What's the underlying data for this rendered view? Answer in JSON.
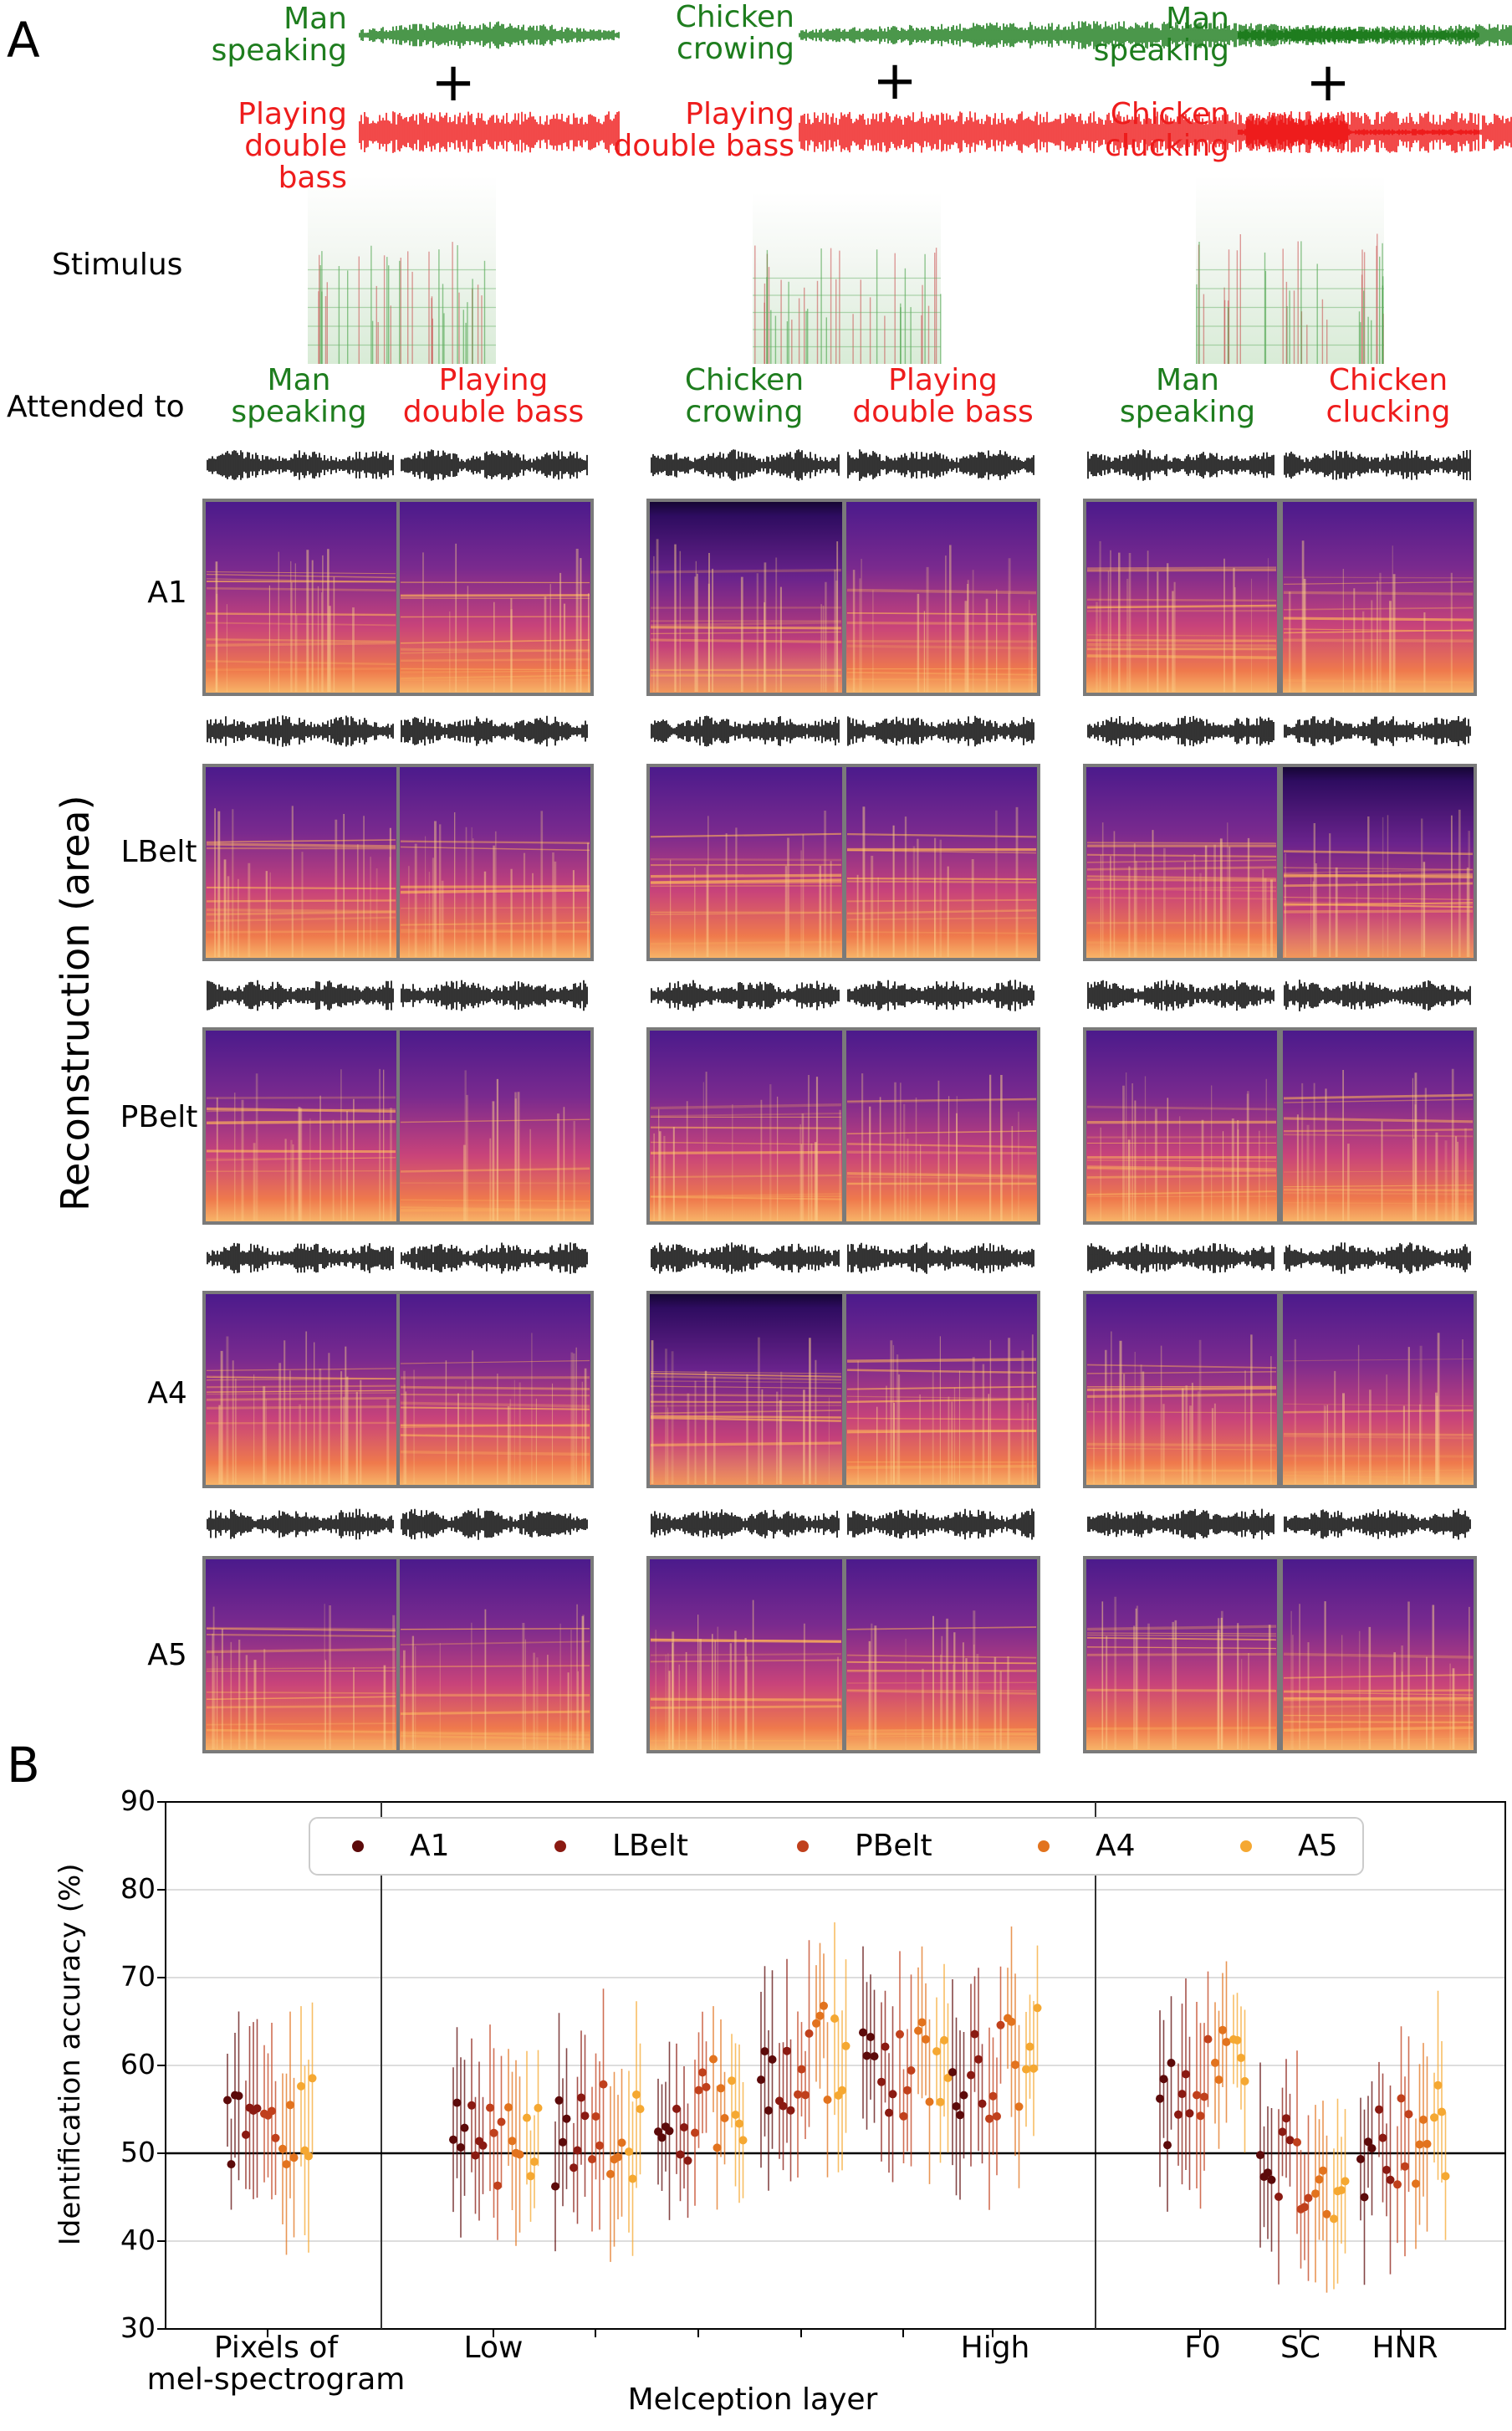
{
  "panel_a": {
    "label": "A",
    "stimulus_label": "Stimulus",
    "attended_label": "Attended to",
    "y_axis_label": "Reconstruction (area)",
    "areas": [
      "A1",
      "LBelt",
      "PBelt",
      "A4",
      "A5"
    ],
    "plus_sign": "+",
    "columns": [
      {
        "sound1": "Man speaking",
        "sound2": "Playing double bass",
        "sound1_lines": [
          "Man",
          "speaking"
        ],
        "sound2_lines": [
          "Playing",
          "double bass"
        ]
      },
      {
        "sound1": "Chicken crowing",
        "sound2": "Playing double bass",
        "sound1_lines": [
          "Chicken",
          "crowing"
        ],
        "sound2_lines": [
          "Playing",
          "double bass"
        ]
      },
      {
        "sound1": "Man speaking",
        "sound2": "Chicken clucking",
        "sound1_lines": [
          "Man",
          "speaking"
        ],
        "sound2_lines": [
          "Chicken",
          "clucking"
        ]
      }
    ],
    "colors": {
      "attended1": "#1e7d1e",
      "attended2": "#ee1c1c",
      "waveform": "#000000"
    }
  },
  "panel_b": {
    "label": "B",
    "chart_data": {
      "type": "scatter",
      "ylabel": "Identification accuracy (%)",
      "xlabel": "Melception layer",
      "ylim": [
        30,
        90
      ],
      "yticks": [
        30,
        40,
        50,
        60,
        70,
        80,
        90
      ],
      "chance_level": 50,
      "grid": "horizontal",
      "legend_position": "top",
      "series": [
        {
          "name": "A1",
          "color": "#5c0a0a"
        },
        {
          "name": "LBelt",
          "color": "#8a1a12"
        },
        {
          "name": "PBelt",
          "color": "#c0401c"
        },
        {
          "name": "A4",
          "color": "#e2731e"
        },
        {
          "name": "A5",
          "color": "#f5a832"
        }
      ],
      "groups": [
        {
          "label": "Pixels of mel-spectrogram",
          "label_lines": [
            "Pixels of",
            "mel-spectrogram"
          ],
          "means": [
            53.5,
            53.5,
            55,
            54,
            55
          ]
        },
        {
          "label": "Low",
          "means": [
            52,
            51,
            52,
            51.5,
            52
          ]
        },
        {
          "label": "",
          "means": [
            52,
            51,
            53,
            52,
            53
          ]
        },
        {
          "label": "",
          "means": [
            54,
            53,
            56,
            55,
            56
          ]
        },
        {
          "label": "",
          "means": [
            60,
            59,
            62,
            61,
            62
          ]
        },
        {
          "label": "",
          "means": [
            58,
            58,
            59,
            60,
            60
          ]
        },
        {
          "label": "High",
          "means": [
            58,
            58,
            59,
            60,
            61
          ]
        },
        {
          "label": "F0",
          "means": [
            56,
            57,
            58,
            59,
            60
          ]
        },
        {
          "label": "SC",
          "means": [
            49,
            48,
            47,
            46,
            45
          ]
        },
        {
          "label": "HNR",
          "means": [
            51,
            51,
            52,
            52,
            53
          ]
        }
      ]
    }
  }
}
